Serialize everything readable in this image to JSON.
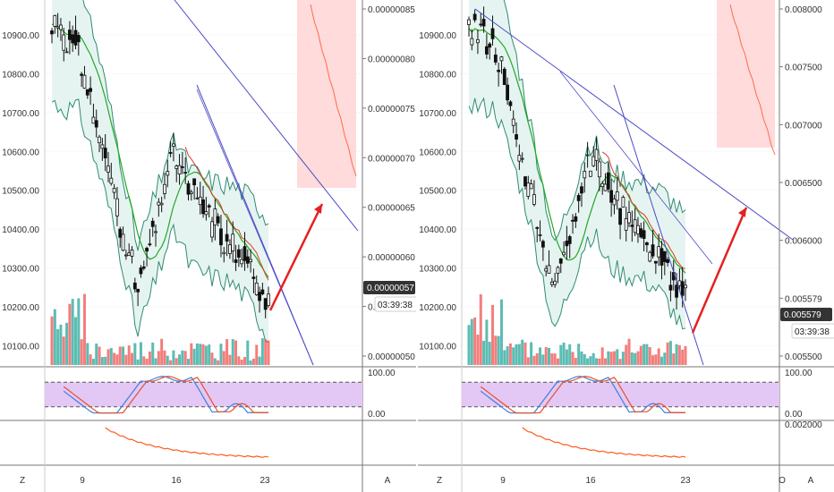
{
  "chart_data": [
    {
      "type": "candlestick",
      "price_ticks": [
        "10900.00",
        "10800.00",
        "10700.00",
        "10600.00",
        "10500.00",
        "10400.00",
        "10300.00",
        "10200.00",
        "10100.00"
      ],
      "secondary_ticks": [
        "0.00000085",
        "0.00000080",
        "0.00000075",
        "0.00000070",
        "0.00000065",
        "0.00000060",
        "0.00000057",
        "0.00000050"
      ],
      "x_ticks": [
        "Z",
        "9",
        "16",
        "23",
        "A"
      ],
      "oscillator_ticks": [
        "100.00",
        "0.00"
      ],
      "last_value_label": "0.00000057",
      "countdown_label": "03:39:38",
      "price_range": [
        10050,
        10990
      ],
      "oscillator_band": [
        20,
        80
      ]
    },
    {
      "type": "candlestick",
      "price_ticks": [
        "10900.00",
        "10800.00",
        "10700.00",
        "10600.00",
        "10500.00",
        "10400.00",
        "10300.00",
        "10200.00",
        "10100.00"
      ],
      "secondary_ticks": [
        "0.008000",
        "0.007500",
        "0.007000",
        "0.006500",
        "0.006000",
        "0.005579",
        "0.005500"
      ],
      "x_ticks": [
        "Z",
        "9",
        "16",
        "23",
        "O",
        "A"
      ],
      "oscillator_ticks": [
        "100.00",
        "0.00"
      ],
      "lower_ticks": [
        "0.002000"
      ],
      "last_value_label": "0.005579",
      "countdown_label": "03:39:38",
      "price_range": [
        10050,
        10990
      ],
      "oscillator_band": [
        20,
        80
      ]
    }
  ],
  "colors": {
    "up": "#26a69a",
    "down": "#ef5350",
    "candle": "#111111",
    "bb_fill": "#e6f4f1",
    "bb_line": "#2e8b74",
    "ma_green": "#22aa22",
    "trend": "#4a4ac8",
    "arrow": "#e52020",
    "cloud": "#ffcccc",
    "cloud_line": "#ff6a4a",
    "osc_band": "#e3c8f5",
    "osc_blue": "#3f7fd9",
    "osc_red": "#e8502c",
    "lower_line": "#ff5a1f"
  }
}
